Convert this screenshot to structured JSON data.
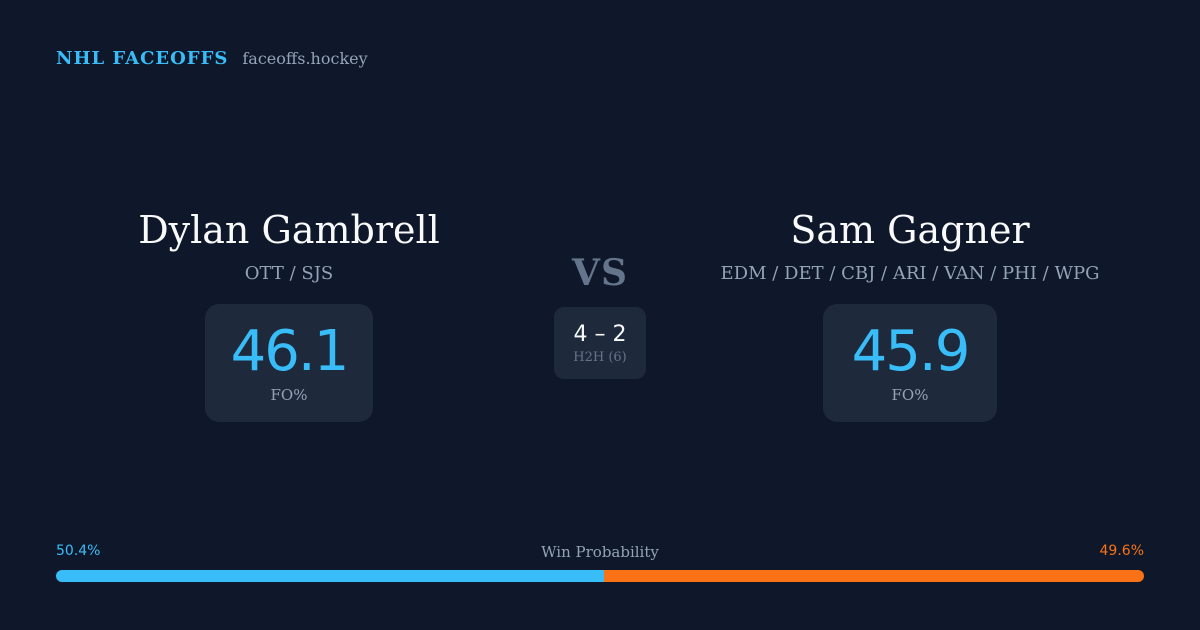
{
  "brand": {
    "name": "NHL FACEOFFS",
    "domain": "faceoffs.hockey"
  },
  "player_left": {
    "name": "Dylan Gambrell",
    "teams": "OTT / SJS",
    "stat_value": "46.1",
    "stat_label": "FO%"
  },
  "player_right": {
    "name": "Sam Gagner",
    "teams": "EDM / DET / CBJ / ARI / VAN / PHI / WPG",
    "stat_value": "45.9",
    "stat_label": "FO%"
  },
  "matchup": {
    "vs_label": "VS",
    "h2h_score": "4 – 2",
    "h2h_label": "H2H (6)"
  },
  "win_probability": {
    "title": "Win Probability",
    "left_label": "50.4%",
    "right_label": "49.6%",
    "left_value": 50.4,
    "right_value": 49.6
  },
  "colors": {
    "background": "#0f172a",
    "card": "#1e293b",
    "accent_left": "#38bdf8",
    "accent_right": "#f97316",
    "muted_text": "#94a3b8"
  }
}
